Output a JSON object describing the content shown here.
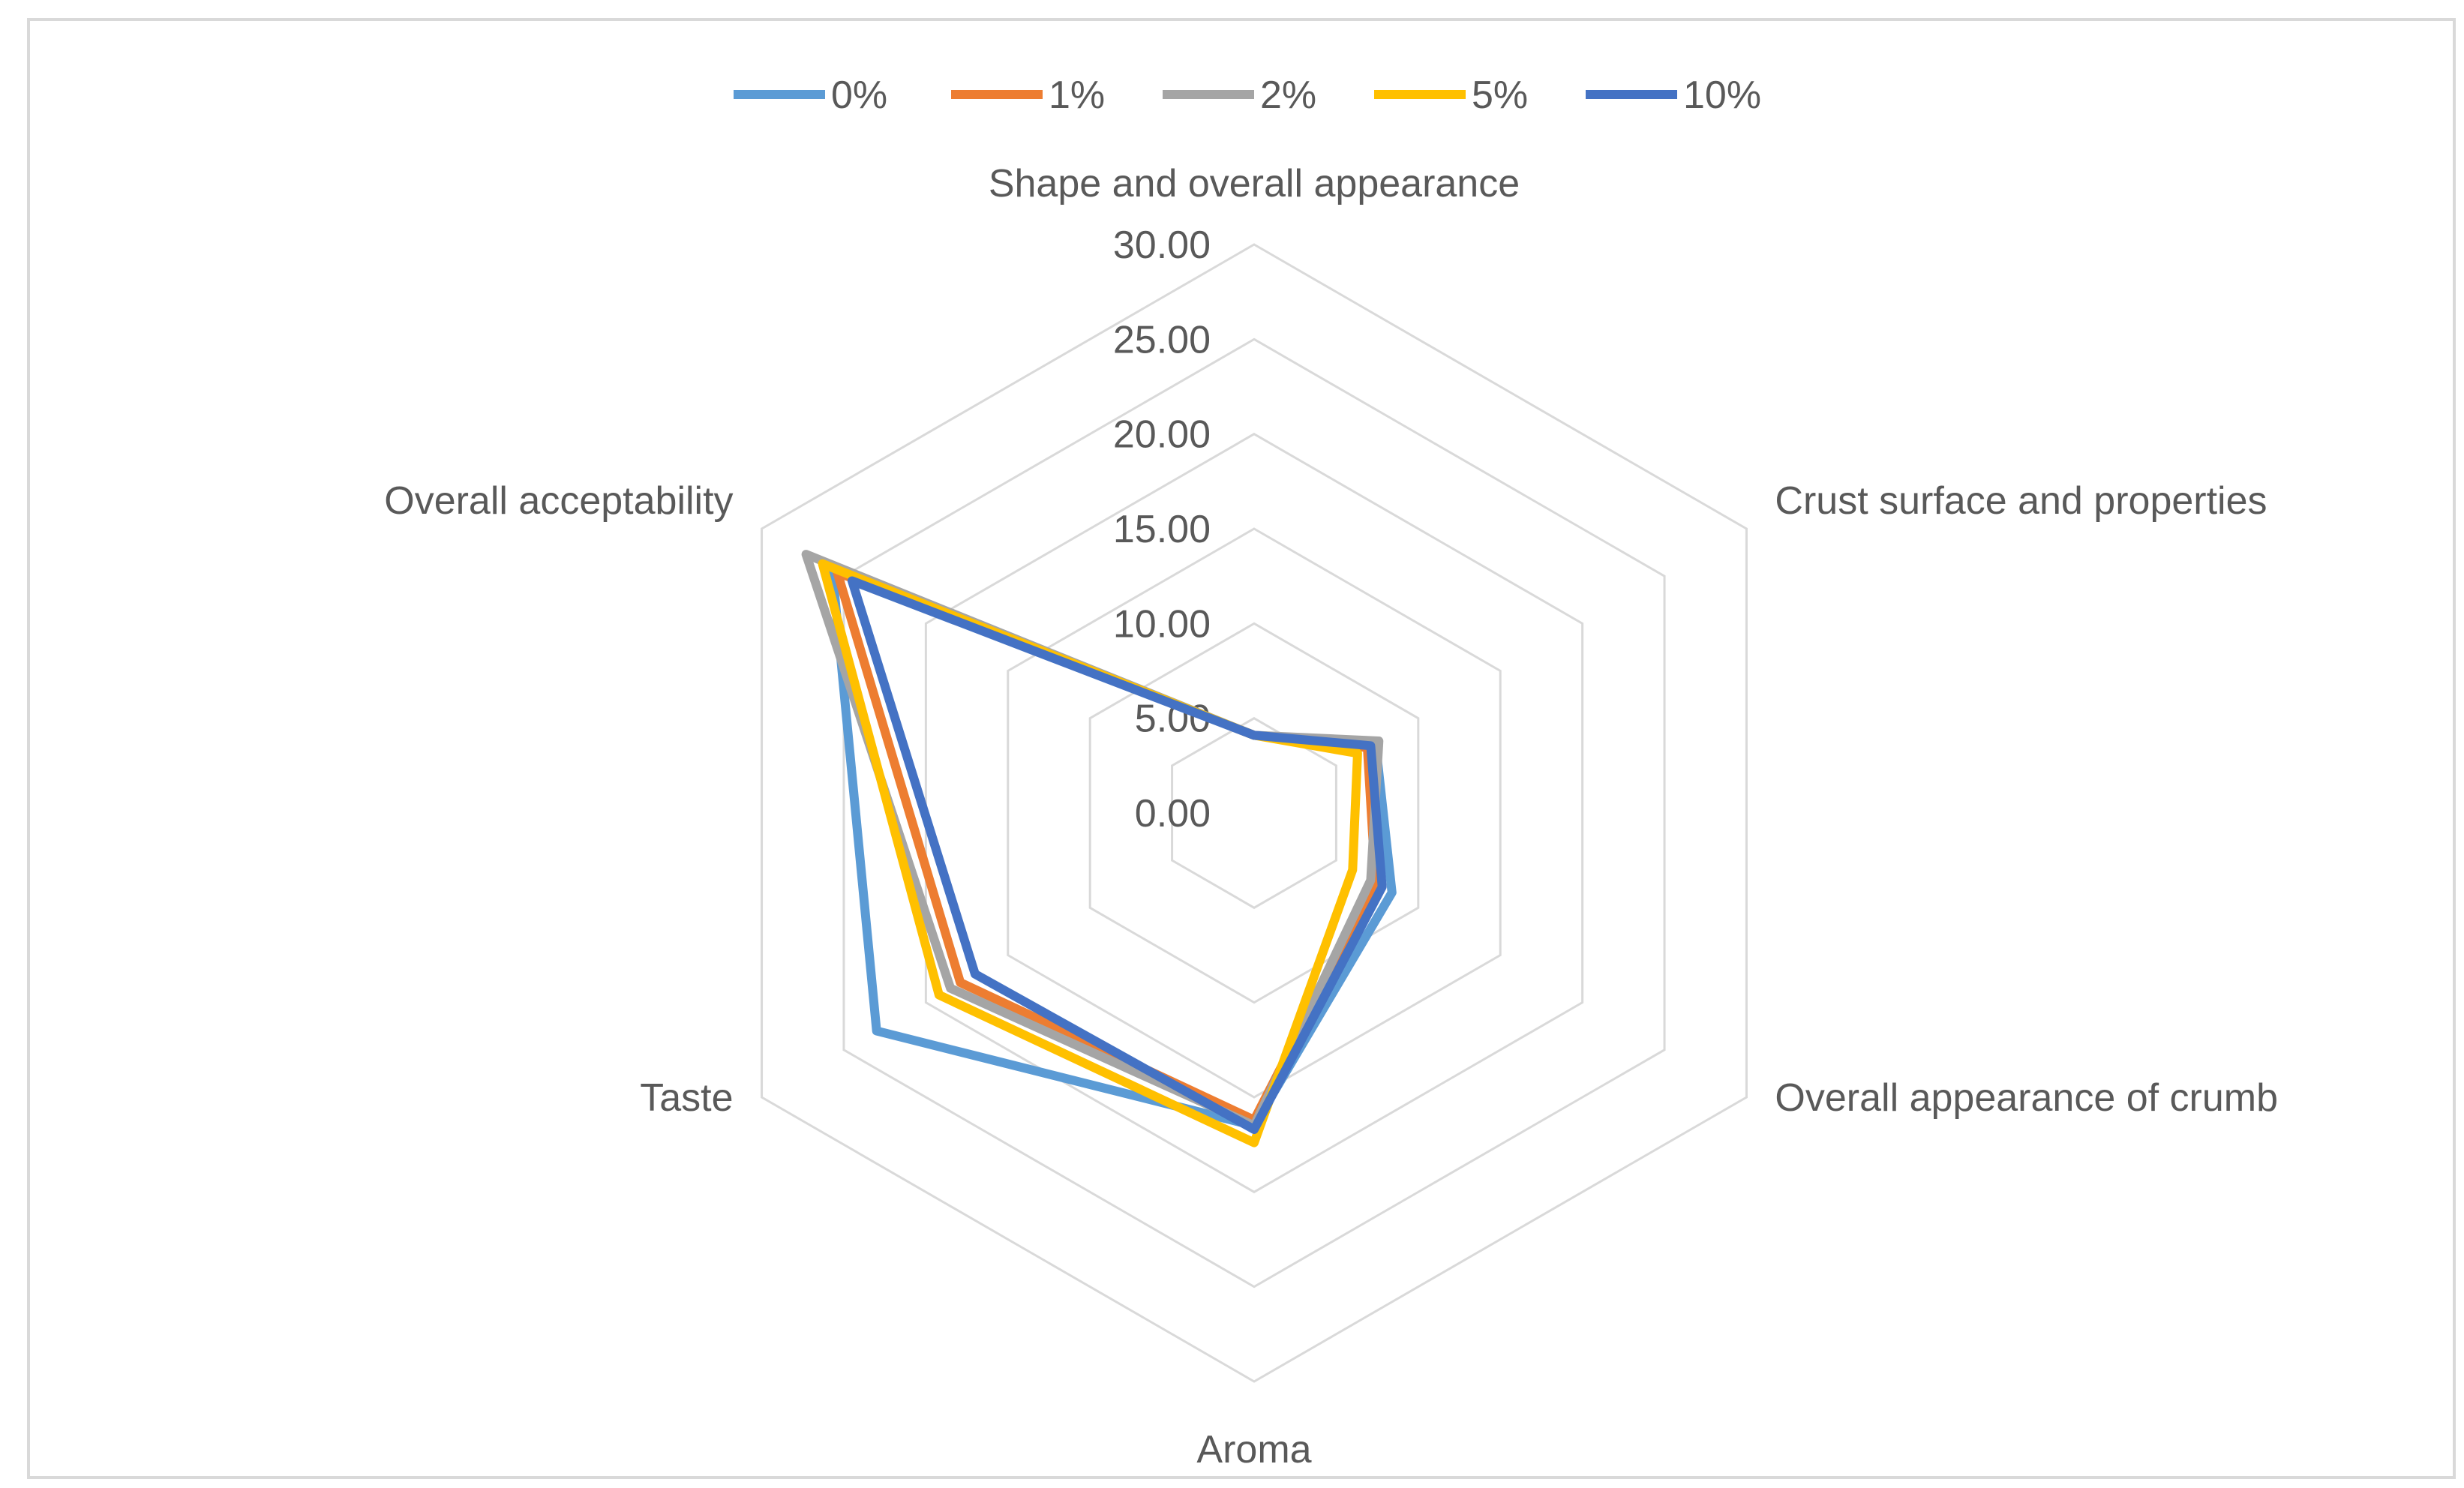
{
  "chart_data": {
    "type": "radar",
    "title": "",
    "axes": [
      "Shape and overall appearance",
      "Crust surface and properties",
      "Overall appearance of crumb",
      "Aroma",
      "Taste",
      "Overall acceptability"
    ],
    "ticks": [
      "0.00",
      "5.00",
      "10.00",
      "15.00",
      "20.00",
      "25.00",
      "30.00"
    ],
    "rmin": 0,
    "rmax": 30,
    "legend_position": "top",
    "series": [
      {
        "name": "0%",
        "color": "#5B9BD5",
        "values": [
          4.1,
          7.4,
          8.4,
          16.5,
          23.0,
          25.7
        ]
      },
      {
        "name": "1%",
        "color": "#ED7D31",
        "values": [
          4.1,
          6.9,
          7.4,
          16.2,
          17.9,
          25.4
        ]
      },
      {
        "name": "2%",
        "color": "#A5A5A5",
        "values": [
          4.1,
          7.6,
          7.1,
          16.5,
          18.5,
          27.3
        ]
      },
      {
        "name": "5%",
        "color": "#FFC000",
        "values": [
          4.1,
          6.3,
          6.0,
          17.4,
          19.2,
          26.3
        ]
      },
      {
        "name": "10%",
        "color": "#4472C4",
        "values": [
          4.1,
          7.1,
          7.8,
          16.7,
          17.0,
          24.5
        ]
      }
    ]
  }
}
